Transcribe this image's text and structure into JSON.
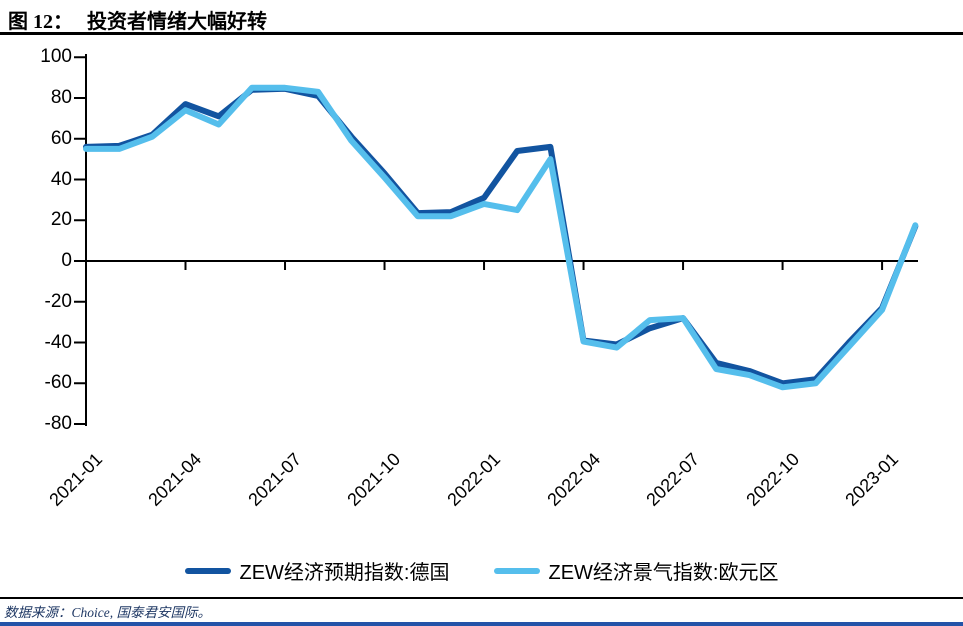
{
  "header": {
    "figure_label": "图 12：",
    "title": "投资者情绪大幅好转"
  },
  "chart_data": {
    "type": "line",
    "x": [
      "2021-01",
      "2021-02",
      "2021-03",
      "2021-04",
      "2021-05",
      "2021-06",
      "2021-07",
      "2021-08",
      "2021-09",
      "2021-10",
      "2021-11",
      "2021-12",
      "2022-01",
      "2022-02",
      "2022-03",
      "2022-04",
      "2022-05",
      "2022-06",
      "2022-07",
      "2022-08",
      "2022-09",
      "2022-10",
      "2022-11",
      "2022-12",
      "2023-01",
      "2023-02"
    ],
    "x_tick_labels": [
      "2021-01",
      "2021-04",
      "2021-07",
      "2021-10",
      "2022-01",
      "2022-04",
      "2022-07",
      "2022-10",
      "2023-01"
    ],
    "y_ticks": [
      100,
      80,
      60,
      40,
      20,
      0,
      -20,
      -40,
      -60,
      -80
    ],
    "ylim": [
      -80,
      100
    ],
    "grid": false,
    "legend_position": "bottom",
    "series": [
      {
        "name": "ZEW经济预期指数:德国",
        "color": "#1254A0",
        "values": [
          56,
          56.5,
          62,
          77,
          71,
          84,
          84.5,
          81,
          61,
          43,
          23.5,
          24,
          31,
          54,
          56,
          -39,
          -41,
          -33,
          -28,
          -50,
          -54,
          -60,
          -58,
          -40,
          -23,
          17
        ]
      },
      {
        "name": "ZEW经济景气指数:欧元区",
        "color": "#55BEEC",
        "values": [
          55,
          55,
          61,
          74,
          67,
          85,
          85,
          83,
          59,
          41,
          22,
          22,
          28,
          25,
          50,
          -39.5,
          -42.5,
          -29,
          -28,
          -53,
          -56,
          -62,
          -60,
          -42,
          -24,
          17.5
        ]
      }
    ]
  },
  "legend": {
    "items": [
      {
        "label": "ZEW经济预期指数:德国",
        "color": "#1254A0"
      },
      {
        "label": "ZEW经济景气指数:欧元区",
        "color": "#55BEEC"
      }
    ]
  },
  "footer": {
    "source_text": "数据来源：Choice, 国泰君安国际。"
  },
  "colors": {
    "axis": "#000000",
    "title_text": "#000000",
    "footer_text": "#1F3864",
    "bottom_bar": "#2353A8",
    "background": "#FFFFFF"
  }
}
